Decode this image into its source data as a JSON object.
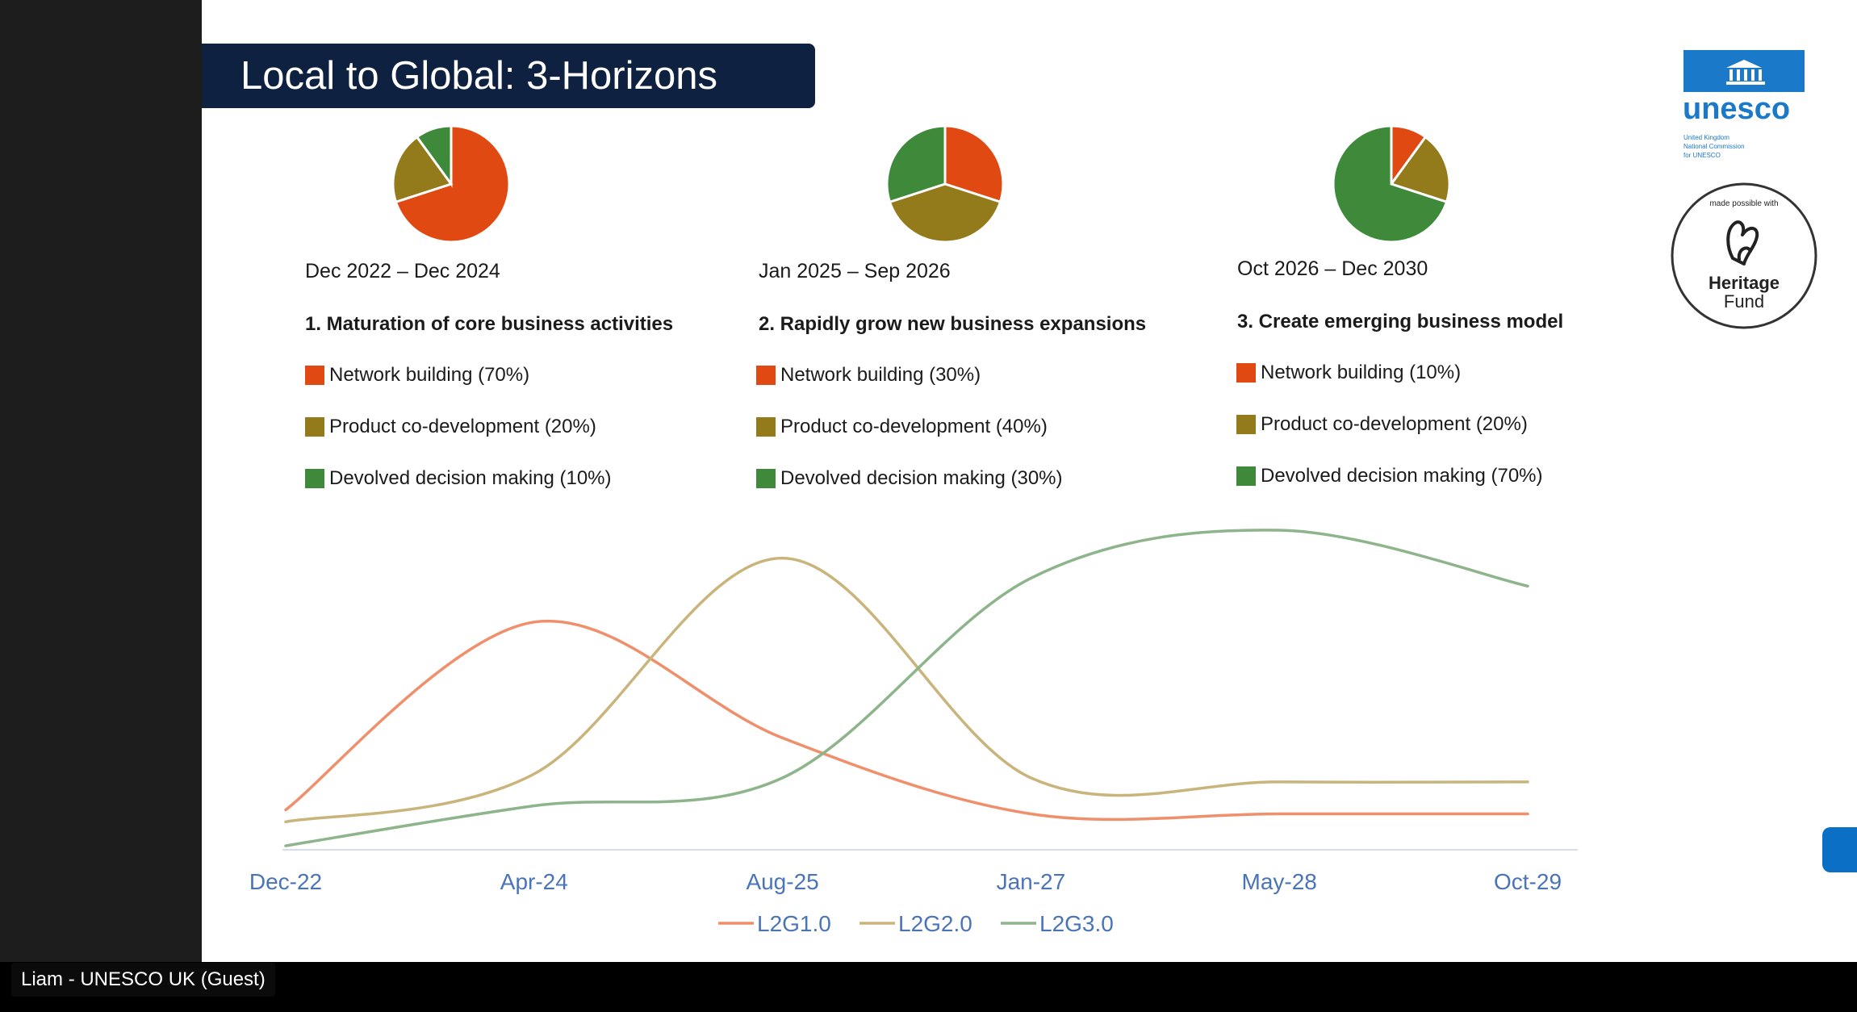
{
  "participant": {
    "name": "Liam - UNESCO UK (Guest)"
  },
  "slide": {
    "title": "Local to Global: 3-Horizons",
    "colors": {
      "network": "#e04a12",
      "product": "#937a1b",
      "devolved": "#3f8a3a",
      "banner": "#0f2140"
    },
    "horizons": [
      {
        "period": "Dec 2022 – Dec 2024",
        "heading": "1. Maturation of core business activities",
        "items": [
          {
            "label": "Network building (70%)",
            "value": 70
          },
          {
            "label": "Product co-development (20%)",
            "value": 20
          },
          {
            "label": "Devolved decision making (10%)",
            "value": 10
          }
        ]
      },
      {
        "period": "Jan 2025 – Sep 2026",
        "heading": "2. Rapidly grow new business expansions",
        "items": [
          {
            "label": "Network building (30%)",
            "value": 30
          },
          {
            "label": "Product co-development (40%)",
            "value": 40
          },
          {
            "label": "Devolved decision making (30%)",
            "value": 30
          }
        ]
      },
      {
        "period": "Oct 2026 – Dec 2030",
        "heading": "3. Create emerging business model",
        "items": [
          {
            "label": "Network building (10%)",
            "value": 10
          },
          {
            "label": "Product co-development (20%)",
            "value": 20
          },
          {
            "label": "Devolved decision making (70%)",
            "value": 70
          }
        ]
      }
    ],
    "logos": {
      "unesco_text": "unesco",
      "unesco_sub": [
        "United Kingdom",
        "National Commission",
        "for UNESCO"
      ],
      "heritage_top": "made possible with",
      "heritage_line1": "Heritage",
      "heritage_line2": "Fund"
    }
  },
  "chart_data": {
    "type": "line",
    "x": [
      "Dec-22",
      "Apr-24",
      "Aug-25",
      "Jan-27",
      "May-28",
      "Oct-29"
    ],
    "title": "",
    "xlabel": "",
    "ylabel": "",
    "ylim": [
      0,
      100
    ],
    "grid": false,
    "legend": "bottom",
    "series": [
      {
        "name": "L2G1.0",
        "color": "#ef8f6b",
        "values": [
          10,
          57,
          28,
          9,
          9,
          9
        ]
      },
      {
        "name": "L2G2.0",
        "color": "#c9b57c",
        "values": [
          7,
          19,
          73,
          18,
          17,
          17
        ]
      },
      {
        "name": "L2G3.0",
        "color": "#8db48a",
        "values": [
          1,
          11,
          18,
          68,
          80,
          66
        ]
      }
    ]
  }
}
